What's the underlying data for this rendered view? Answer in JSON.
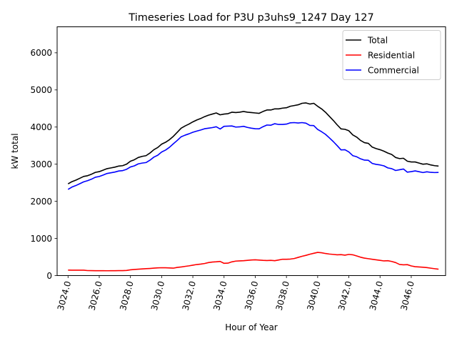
{
  "chart_data": {
    "type": "line",
    "title": "Timeseries Load for P3U p3uhs9_1247  Day 127",
    "xlabel": "Hour of Year",
    "ylabel": "kW total",
    "xlim": [
      3023.3,
      3048.2
    ],
    "ylim": [
      0,
      6700
    ],
    "xticks": [
      3024,
      3026,
      3028,
      3030,
      3032,
      3034,
      3036,
      3038,
      3040,
      3042,
      3044,
      3046
    ],
    "xtick_labels": [
      "3024.0",
      "3026.0",
      "3028.0",
      "3030.0",
      "3032.0",
      "3034.0",
      "3036.0",
      "3038.0",
      "3040.0",
      "3042.0",
      "3044.0",
      "3046.0"
    ],
    "yticks": [
      0,
      1000,
      2000,
      3000,
      4000,
      5000,
      6000
    ],
    "ytick_labels": [
      "0",
      "1000",
      "2000",
      "3000",
      "4000",
      "5000",
      "6000"
    ],
    "legend_position": "top-right",
    "x": [
      3024.0,
      3024.25,
      3024.5,
      3024.75,
      3025.0,
      3025.25,
      3025.5,
      3025.75,
      3026.0,
      3026.25,
      3026.5,
      3026.75,
      3027.0,
      3027.25,
      3027.5,
      3027.75,
      3028.0,
      3028.25,
      3028.5,
      3028.75,
      3029.0,
      3029.25,
      3029.5,
      3029.75,
      3030.0,
      3030.25,
      3030.5,
      3030.75,
      3031.0,
      3031.25,
      3031.5,
      3031.75,
      3032.0,
      3032.25,
      3032.5,
      3032.75,
      3033.0,
      3033.25,
      3033.5,
      3033.75,
      3034.0,
      3034.25,
      3034.5,
      3034.75,
      3035.0,
      3035.25,
      3035.5,
      3035.75,
      3036.0,
      3036.25,
      3036.5,
      3036.75,
      3037.0,
      3037.25,
      3037.5,
      3037.75,
      3038.0,
      3038.25,
      3038.5,
      3038.75,
      3039.0,
      3039.25,
      3039.5,
      3039.75,
      3040.0,
      3040.25,
      3040.5,
      3040.75,
      3041.0,
      3041.25,
      3041.5,
      3041.75,
      3042.0,
      3042.25,
      3042.5,
      3042.75,
      3043.0,
      3043.25,
      3043.5,
      3043.75,
      3044.0,
      3044.25,
      3044.5,
      3044.75,
      3045.0,
      3045.25,
      3045.5,
      3045.75,
      3046.0,
      3046.25,
      3046.5,
      3046.75,
      3047.0,
      3047.25,
      3047.5,
      3047.75
    ],
    "series": [
      {
        "name": "Total",
        "color": "#000000",
        "values": [
          2470,
          2530,
          2570,
          2620,
          2670,
          2690,
          2730,
          2780,
          2800,
          2840,
          2880,
          2900,
          2920,
          2950,
          2960,
          3000,
          3080,
          3120,
          3180,
          3210,
          3230,
          3300,
          3390,
          3450,
          3540,
          3590,
          3660,
          3750,
          3860,
          3970,
          4030,
          4080,
          4140,
          4190,
          4230,
          4280,
          4320,
          4350,
          4380,
          4330,
          4350,
          4360,
          4400,
          4390,
          4400,
          4420,
          4400,
          4390,
          4380,
          4370,
          4420,
          4460,
          4460,
          4490,
          4490,
          4510,
          4520,
          4560,
          4580,
          4600,
          4640,
          4650,
          4620,
          4640,
          4560,
          4490,
          4400,
          4290,
          4180,
          4060,
          3950,
          3940,
          3900,
          3790,
          3730,
          3640,
          3580,
          3560,
          3460,
          3420,
          3390,
          3350,
          3300,
          3260,
          3180,
          3150,
          3160,
          3080,
          3060,
          3060,
          3030,
          3000,
          3010,
          2980,
          2960,
          2950
        ]
      },
      {
        "name": "Residential",
        "color": "#ff0000",
        "values": [
          148,
          146,
          145,
          146,
          145,
          135,
          134,
          132,
          131,
          132,
          130,
          131,
          132,
          133,
          133,
          138,
          155,
          165,
          172,
          180,
          186,
          192,
          200,
          208,
          212,
          210,
          205,
          200,
          220,
          232,
          248,
          262,
          280,
          298,
          310,
          325,
          350,
          365,
          372,
          382,
          330,
          335,
          370,
          390,
          395,
          400,
          410,
          420,
          425,
          418,
          410,
          405,
          410,
          400,
          420,
          440,
          440,
          445,
          460,
          490,
          520,
          545,
          575,
          600,
          625,
          615,
          595,
          580,
          570,
          560,
          565,
          550,
          570,
          560,
          530,
          495,
          470,
          455,
          440,
          425,
          410,
          395,
          400,
          380,
          350,
          300,
          290,
          295,
          260,
          240,
          232,
          225,
          215,
          200,
          185,
          172
        ]
      },
      {
        "name": "Commercial",
        "color": "#0000ff",
        "values": [
          2322,
          2384,
          2425,
          2474,
          2525,
          2555,
          2596,
          2648,
          2669,
          2708,
          2750,
          2769,
          2788,
          2817,
          2827,
          2862,
          2925,
          2955,
          3008,
          3030,
          3044,
          3108,
          3190,
          3242,
          3328,
          3380,
          3455,
          3550,
          3640,
          3738,
          3782,
          3818,
          3860,
          3892,
          3920,
          3955,
          3970,
          3985,
          4008,
          3948,
          4020,
          4025,
          4030,
          4000,
          4005,
          4020,
          3990,
          3970,
          3955,
          3952,
          4010,
          4055,
          4050,
          4090,
          4070,
          4070,
          4080,
          4115,
          4120,
          4110,
          4120,
          4105,
          4045,
          4040,
          3935,
          3875,
          3805,
          3710,
          3610,
          3500,
          3385,
          3390,
          3330,
          3230,
          3200,
          3145,
          3110,
          3105,
          3020,
          2995,
          2980,
          2955,
          2900,
          2880,
          2830,
          2850,
          2870,
          2785,
          2800,
          2820,
          2798,
          2775,
          2795,
          2780,
          2775,
          2778
        ]
      }
    ]
  }
}
